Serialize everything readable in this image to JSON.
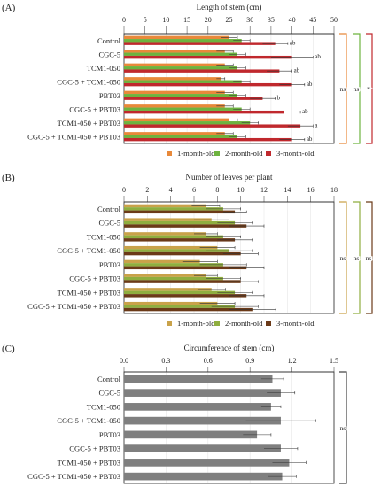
{
  "chart_data": [
    {
      "type": "bar",
      "panel_label": "(A)",
      "title": "Length of stem (cm)",
      "xlim": [
        0,
        50
      ],
      "ticks": [
        "0",
        "5",
        "10",
        "15",
        "20",
        "25",
        "30",
        "35",
        "40",
        "45",
        "50"
      ],
      "categories": [
        "Control",
        "CGC-5",
        "TCM1-050",
        "CGC-5 + TCM1-050",
        "PBT03",
        "CGC-5 + PBT03",
        "TCM1-050 + PBT03",
        "CGC-5 + TCM1-050 + PBT03"
      ],
      "series": [
        {
          "name": "1-month-old",
          "color": "#e8893a",
          "values": [
            25,
            24,
            24,
            23,
            24,
            24,
            25,
            24
          ],
          "errors": [
            2,
            2,
            2,
            1,
            2,
            2,
            2,
            2
          ]
        },
        {
          "name": "2-month-old",
          "color": "#6db33f",
          "values": [
            28,
            27,
            27,
            28,
            27,
            28,
            30,
            27
          ],
          "errors": [
            2,
            2,
            2,
            2,
            2,
            2,
            2,
            2
          ]
        },
        {
          "name": "3-month-old",
          "color": "#c0282d",
          "values": [
            36,
            40,
            37,
            40,
            33,
            38,
            42,
            40
          ],
          "errors": [
            3,
            5,
            3,
            3,
            3,
            4,
            3,
            3
          ]
        }
      ],
      "significance_letters": [
        "ab",
        "ab",
        "ab",
        "ab",
        "b",
        "ab",
        "a",
        "ab"
      ],
      "bracket_labels": [
        "ns",
        "ns",
        "*"
      ]
    },
    {
      "type": "bar",
      "panel_label": "(B)",
      "title": "Number of leaves per plant",
      "xlim": [
        0,
        18
      ],
      "ticks": [
        "0",
        "2",
        "4",
        "6",
        "8",
        "10",
        "12",
        "14",
        "16",
        "18"
      ],
      "categories": [
        "Control",
        "CGC-5",
        "TCM1-050",
        "CGC-5 + TCM1-050",
        "PBT03",
        "CGC-5 + PBT03",
        "TCM1-050 + PBT03",
        "CGC-5 + TCM1-050 + PBT03"
      ],
      "series": [
        {
          "name": "1-month-old",
          "color": "#c9a24a",
          "values": [
            7,
            7.5,
            7,
            8,
            6.5,
            7,
            7.5,
            8
          ],
          "errors": [
            1.2,
            1.5,
            1,
            1.5,
            1.5,
            1,
            1.2,
            1.5
          ]
        },
        {
          "name": "2-month-old",
          "color": "#8fae3f",
          "values": [
            8.5,
            9.5,
            8.5,
            9,
            8.5,
            8.5,
            9.5,
            9.5
          ],
          "errors": [
            1.5,
            1.5,
            1.5,
            2,
            2,
            1.5,
            1.5,
            2
          ]
        },
        {
          "name": "3-month-old",
          "color": "#6b3a18",
          "values": [
            9.5,
            10.5,
            9.5,
            10,
            10.5,
            10,
            10.5,
            11
          ],
          "errors": [
            1,
            1.5,
            1.5,
            1.5,
            1.5,
            1.5,
            1.5,
            2
          ]
        }
      ],
      "series_overlay_colors": [
        "#d4a83f",
        "#c0282d"
      ],
      "bracket_labels": [
        "ns",
        "ns",
        "ns"
      ]
    },
    {
      "type": "bar",
      "panel_label": "(C)",
      "title": "Circumference of stem (cm)",
      "xlim": [
        0,
        1.5
      ],
      "ticks": [
        "0.0",
        "0.3",
        "0.6",
        "0.9",
        "1.2",
        "1.5"
      ],
      "categories": [
        "Control",
        "CGC-5",
        "TCM1-050",
        "CGC-5 + TCM1-050",
        "PBT03",
        "CGC-5 + PBT03",
        "TCM1-050 + PBT03",
        "CGC-5 + TCM1-050 + PBT03"
      ],
      "series": [
        {
          "name": "",
          "color": "#7f7f7f",
          "values": [
            1.06,
            1.12,
            1.05,
            1.12,
            0.95,
            1.12,
            1.18,
            1.13
          ],
          "errors": [
            0.08,
            0.1,
            0.07,
            0.25,
            0.1,
            0.12,
            0.12,
            0.1
          ]
        }
      ],
      "bracket_labels": [
        "ns"
      ]
    }
  ]
}
